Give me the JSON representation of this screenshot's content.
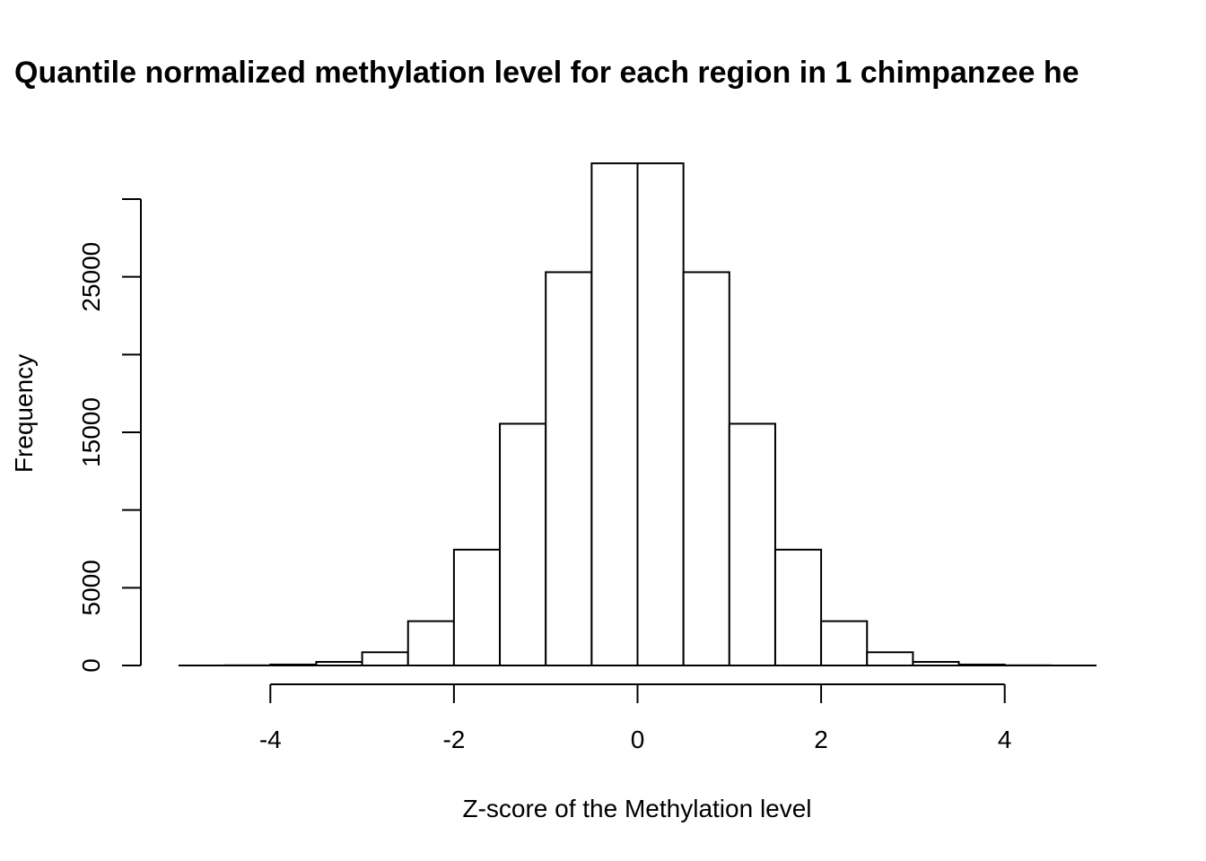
{
  "chart_data": {
    "type": "bar",
    "title": "Quantile normalized methylation level for each region in 1 chimpanzee he",
    "xlabel": "Z-score of the Methylation level",
    "ylabel": "Frequency",
    "xlim": [
      -5,
      5
    ],
    "ylim": [
      0,
      35000
    ],
    "x_ticks": [
      -4,
      -2,
      0,
      2,
      4
    ],
    "x_tick_labels": [
      "-4",
      "-2",
      "0",
      "2",
      "4"
    ],
    "y_ticks": [
      0,
      5000,
      10000,
      15000,
      20000,
      25000,
      30000
    ],
    "y_tick_labels": [
      "0",
      "5000",
      "",
      "15000",
      "",
      "25000",
      ""
    ],
    "bins": [
      {
        "x0": -5.0,
        "x1": -4.5,
        "value": 0
      },
      {
        "x0": -4.5,
        "x1": -4.0,
        "value": 10
      },
      {
        "x0": -4.0,
        "x1": -3.5,
        "value": 60
      },
      {
        "x0": -3.5,
        "x1": -3.0,
        "value": 230
      },
      {
        "x0": -3.0,
        "x1": -2.5,
        "value": 850
      },
      {
        "x0": -2.5,
        "x1": -2.0,
        "value": 2850
      },
      {
        "x0": -2.0,
        "x1": -1.5,
        "value": 7450
      },
      {
        "x0": -1.5,
        "x1": -1.0,
        "value": 15550
      },
      {
        "x0": -1.0,
        "x1": -0.5,
        "value": 25300
      },
      {
        "x0": -0.5,
        "x1": 0.0,
        "value": 32300
      },
      {
        "x0": 0.0,
        "x1": 0.5,
        "value": 32300
      },
      {
        "x0": 0.5,
        "x1": 1.0,
        "value": 25300
      },
      {
        "x0": 1.0,
        "x1": 1.5,
        "value": 15550
      },
      {
        "x0": 1.5,
        "x1": 2.0,
        "value": 7450
      },
      {
        "x0": 2.0,
        "x1": 2.5,
        "value": 2850
      },
      {
        "x0": 2.5,
        "x1": 3.0,
        "value": 850
      },
      {
        "x0": 3.0,
        "x1": 3.5,
        "value": 230
      },
      {
        "x0": 3.5,
        "x1": 4.0,
        "value": 60
      },
      {
        "x0": 4.0,
        "x1": 4.5,
        "value": 10
      },
      {
        "x0": 4.5,
        "x1": 5.0,
        "value": 0
      }
    ],
    "grid": false
  }
}
